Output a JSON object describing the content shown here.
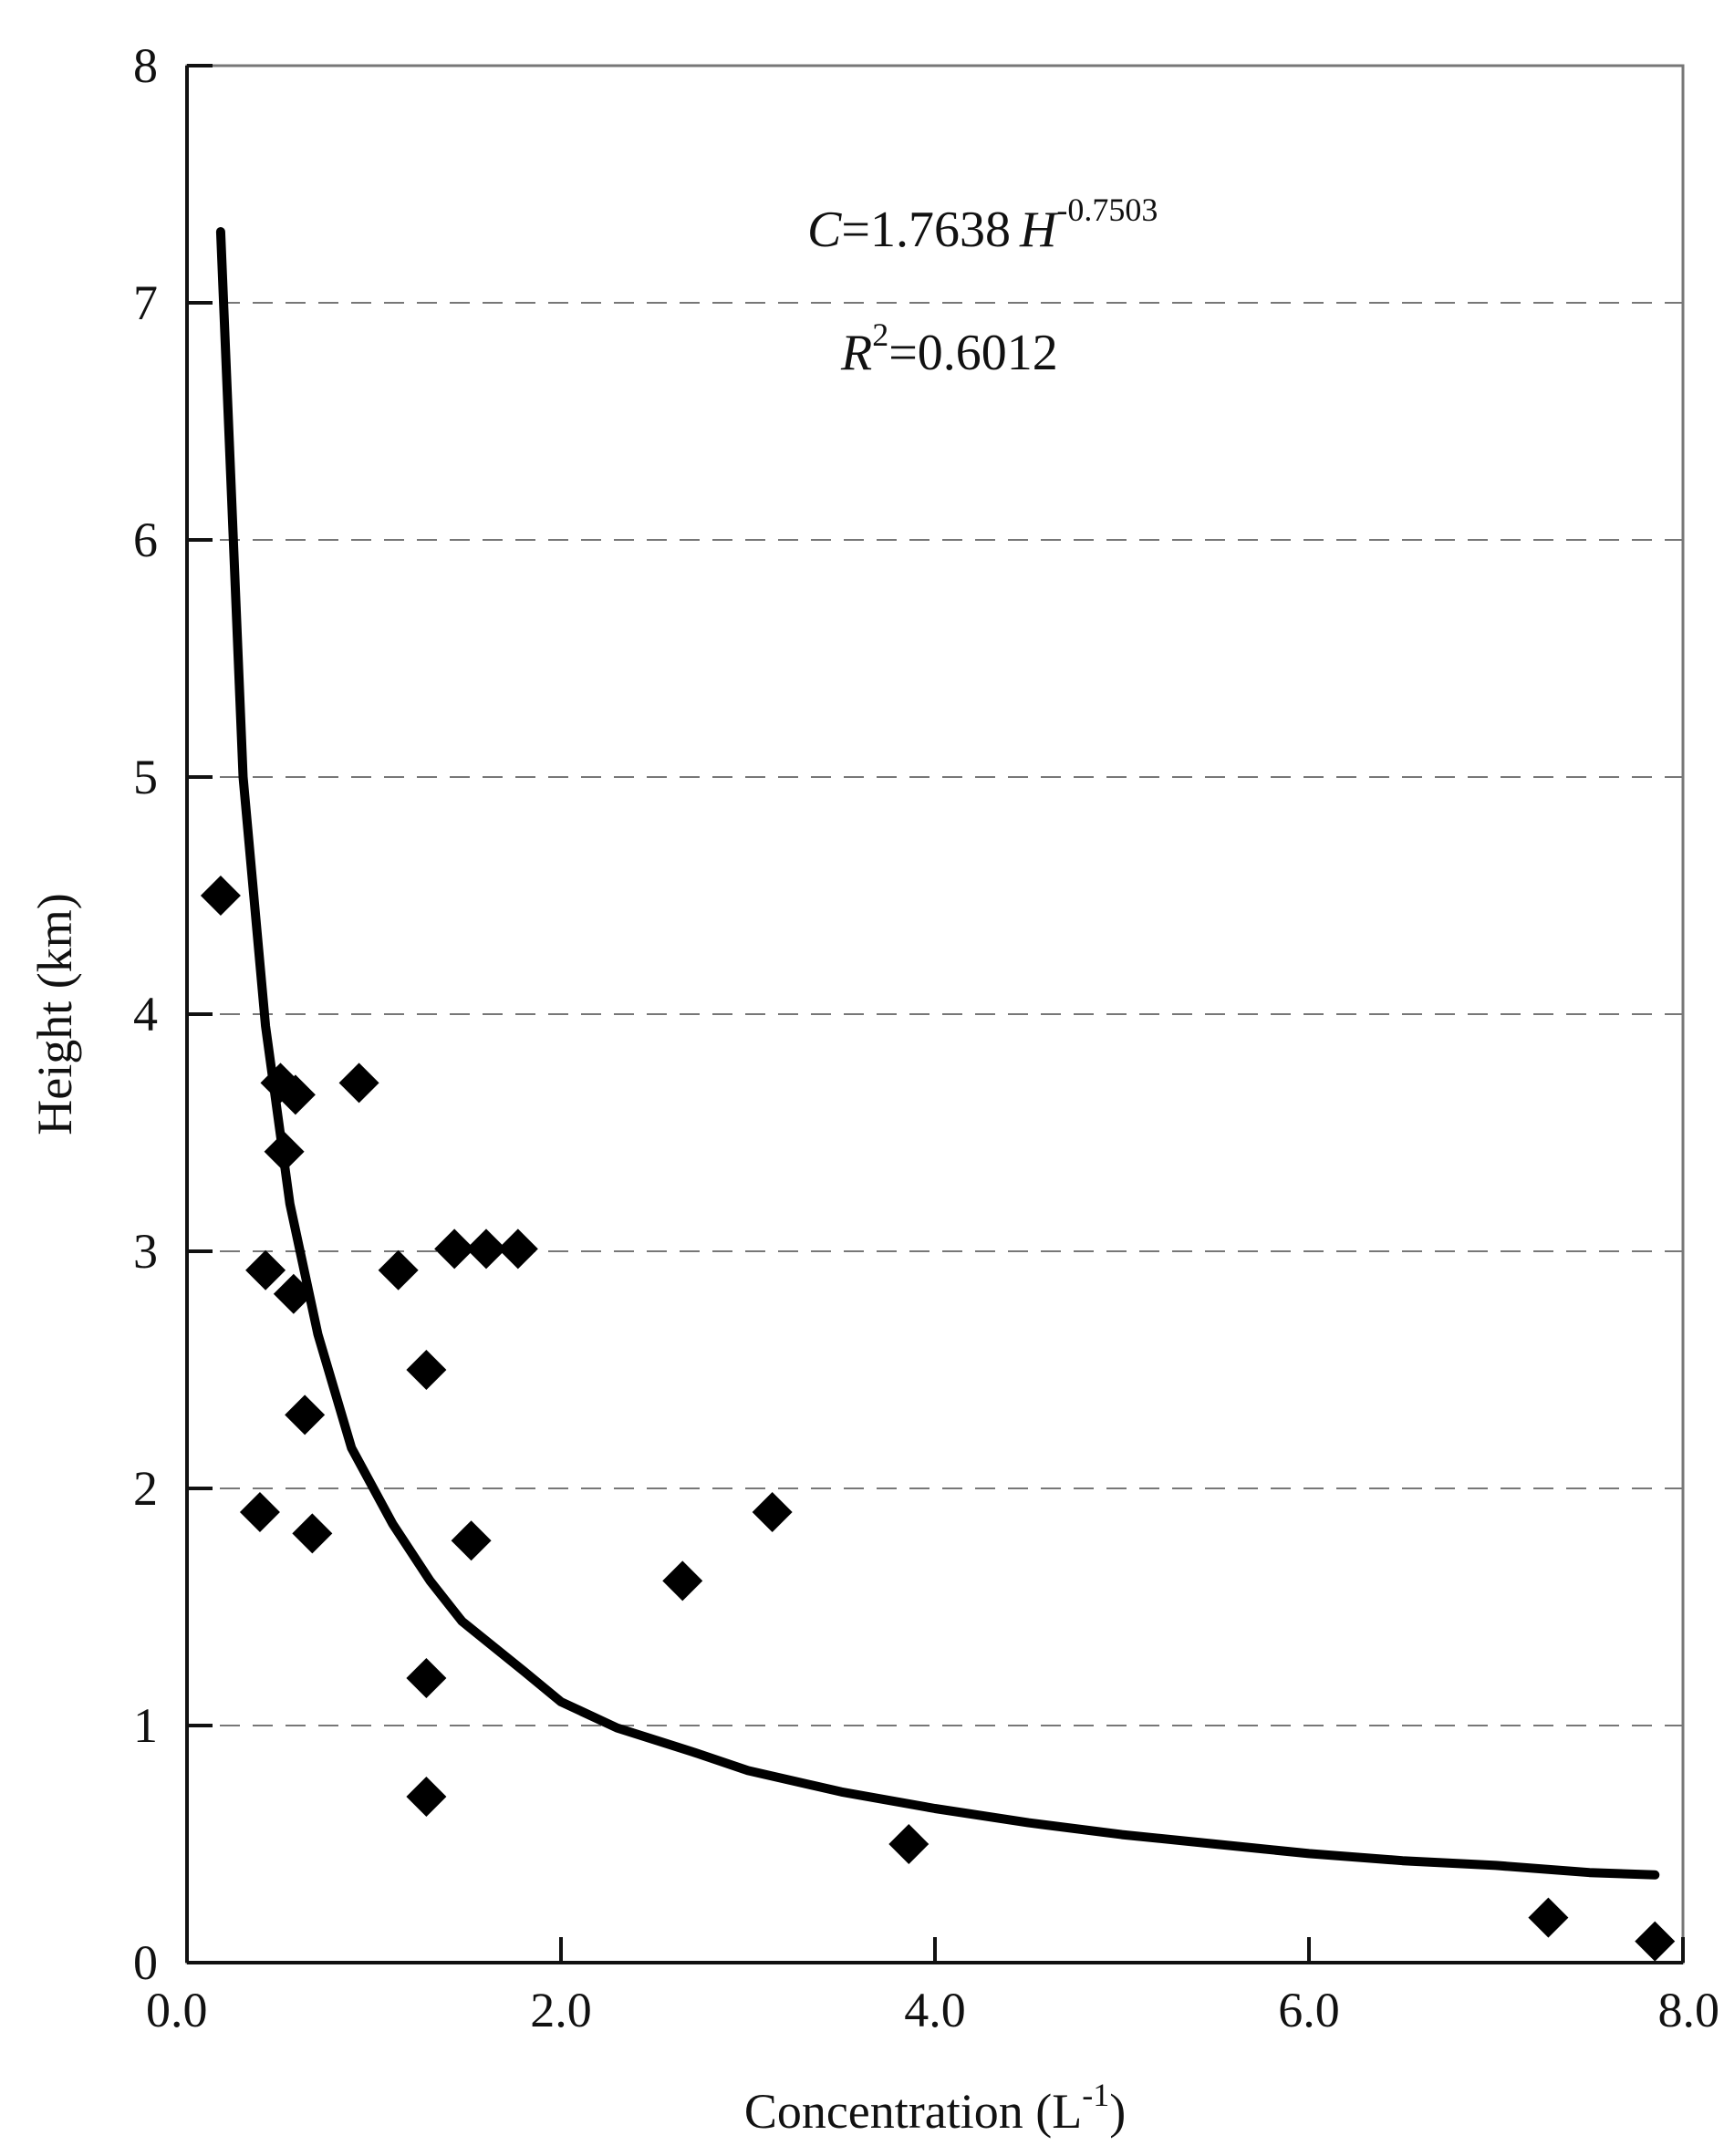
{
  "chart_data": {
    "type": "scatter",
    "xlabel": "Concentration (L",
    "xlabel_sup": "-1",
    "xlabel_end": ")",
    "ylabel": "Height (km)",
    "xlim": [
      0,
      8
    ],
    "ylim": [
      0,
      8
    ],
    "x_ticks": [
      "0.0",
      "2.0",
      "4.0",
      "6.0",
      "8.0"
    ],
    "x_tick_values": [
      0,
      2,
      4,
      6,
      8
    ],
    "y_ticks": [
      "0",
      "1",
      "2",
      "3",
      "4",
      "5",
      "6",
      "7",
      "8"
    ],
    "y_tick_values": [
      0,
      1,
      2,
      3,
      4,
      5,
      6,
      7,
      8
    ],
    "grid": "horizontal dashed",
    "annotations": {
      "equation": {
        "var": "C",
        "eq_coef": "=1.7638",
        "var2": "H",
        "exponent": "-0.7503"
      },
      "r2": {
        "var": "R",
        "sup": "2",
        "value": "=0.6012"
      }
    },
    "points": [
      {
        "x": 0.18,
        "y": 4.5
      },
      {
        "x": 0.5,
        "y": 3.71
      },
      {
        "x": 0.58,
        "y": 3.66
      },
      {
        "x": 0.92,
        "y": 3.71
      },
      {
        "x": 0.52,
        "y": 3.42
      },
      {
        "x": 0.42,
        "y": 2.92
      },
      {
        "x": 0.57,
        "y": 2.82
      },
      {
        "x": 1.13,
        "y": 2.92
      },
      {
        "x": 1.43,
        "y": 3.01
      },
      {
        "x": 1.6,
        "y": 3.01
      },
      {
        "x": 1.77,
        "y": 3.01
      },
      {
        "x": 1.28,
        "y": 2.5
      },
      {
        "x": 0.63,
        "y": 2.31
      },
      {
        "x": 0.39,
        "y": 1.9
      },
      {
        "x": 0.67,
        "y": 1.81
      },
      {
        "x": 1.52,
        "y": 1.78
      },
      {
        "x": 3.13,
        "y": 1.9
      },
      {
        "x": 2.65,
        "y": 1.61
      },
      {
        "x": 1.28,
        "y": 1.2
      },
      {
        "x": 1.28,
        "y": 0.7
      },
      {
        "x": 3.86,
        "y": 0.5
      },
      {
        "x": 7.28,
        "y": 0.19
      },
      {
        "x": 7.85,
        "y": 0.09
      }
    ],
    "fit_line": {
      "x": [
        0.18,
        0.3,
        0.42,
        0.55,
        0.7,
        0.88,
        1.1,
        1.3,
        1.47,
        1.8,
        2.0,
        2.3,
        2.7,
        3.0,
        3.5,
        4.0,
        4.5,
        5.0,
        5.5,
        6.0,
        6.5,
        7.0,
        7.5,
        7.85
      ],
      "y": [
        7.3,
        5.0,
        3.95,
        3.2,
        2.65,
        2.17,
        1.85,
        1.61,
        1.44,
        1.23,
        1.1,
        0.99,
        0.89,
        0.81,
        0.72,
        0.65,
        0.59,
        0.54,
        0.5,
        0.46,
        0.43,
        0.41,
        0.38,
        0.37
      ]
    }
  }
}
